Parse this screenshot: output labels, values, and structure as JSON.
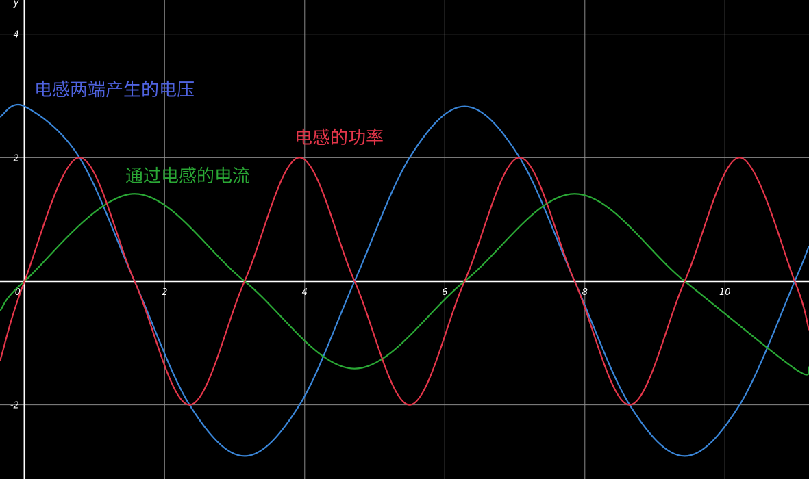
{
  "chart_data": {
    "type": "line",
    "title": "",
    "xlabel": "",
    "ylabel": "y",
    "xlim": [
      -0.35,
      11.2
    ],
    "ylim": [
      -3.2,
      4.55
    ],
    "grid": true,
    "x_ticks": [
      {
        "value": 0,
        "label": "0"
      },
      {
        "value": 2,
        "label": "2"
      },
      {
        "value": 4,
        "label": "4"
      },
      {
        "value": 6,
        "label": "6"
      },
      {
        "value": 8,
        "label": "8"
      },
      {
        "value": 10,
        "label": "10"
      }
    ],
    "y_ticks": [
      {
        "value": 4,
        "label": "4"
      },
      {
        "value": 2,
        "label": "2"
      },
      {
        "value": -2,
        "label": "-2"
      }
    ],
    "series": [
      {
        "name": "电感两端产生的电压",
        "color": "#3a86d9",
        "label_color": "#4f63e0",
        "formula": "y = 2.828 cos(x)",
        "x": [
          -0.35,
          0,
          0.785,
          1.571,
          2.356,
          3.142,
          3.927,
          4.712,
          5.498,
          6.283,
          7.069,
          7.854,
          8.639,
          9.425,
          10.21,
          10.996,
          11.2
        ],
        "y": [
          2.66,
          2.828,
          2.0,
          0,
          -2.0,
          -2.828,
          -2.0,
          0,
          2.0,
          2.828,
          2.0,
          0,
          -2.0,
          -2.828,
          -2.0,
          0,
          0.57
        ]
      },
      {
        "name": "通过电感的电流",
        "color": "#2aa835",
        "label_color": "#2aa835",
        "formula": "y = 1.414 sin(x)",
        "x": [
          -0.35,
          0,
          1.571,
          3.142,
          4.712,
          6.283,
          7.854,
          9.425,
          10.996,
          11.2
        ],
        "y": [
          -0.48,
          0,
          1.414,
          0,
          -1.414,
          0,
          1.414,
          0,
          -1.414,
          -1.39
        ]
      },
      {
        "name": "电感的功率",
        "color": "#e5364a",
        "label_color": "#e5364a",
        "formula": "y = 2 sin(2x)",
        "x": [
          -0.35,
          0,
          0.785,
          1.571,
          2.356,
          3.142,
          3.927,
          4.712,
          5.498,
          6.283,
          7.069,
          7.854,
          8.639,
          9.425,
          10.21,
          10.996,
          11.2
        ],
        "y": [
          -1.29,
          0,
          2,
          0,
          -2,
          0,
          2,
          0,
          -2,
          0,
          2,
          0,
          -2,
          0,
          2,
          0,
          -0.79
        ]
      }
    ],
    "annotations": [
      {
        "text": "电感两端产生的电压",
        "series": 0
      },
      {
        "text": "电感的功率",
        "series": 2
      },
      {
        "text": "通过电感的电流",
        "series": 1
      }
    ]
  }
}
